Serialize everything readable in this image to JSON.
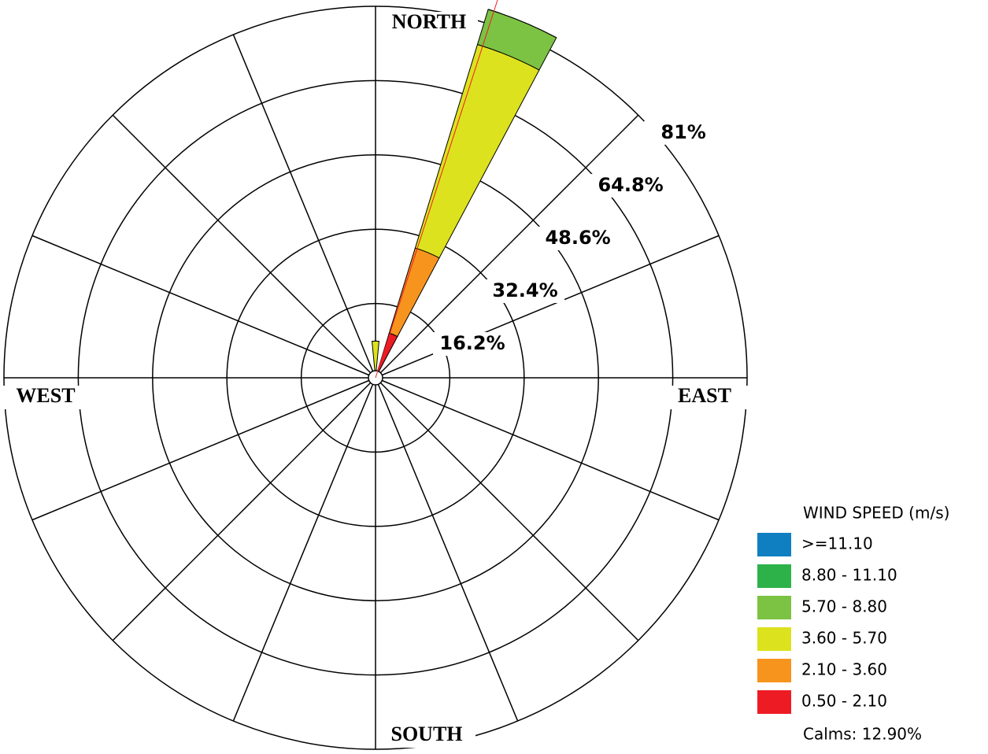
{
  "chart_data": {
    "type": "windrose",
    "categories": [
      "NORTH",
      null,
      null,
      null,
      "EAST",
      null,
      null,
      null,
      "SOUTH",
      null,
      null,
      null,
      "WEST",
      null,
      null,
      null
    ],
    "legend_title": "WIND SPEED (m/s)",
    "series": [
      {
        "name": "0.50 - 2.10",
        "color": "#ed1c24",
        "values": [
          0,
          10.2,
          0,
          0,
          0,
          0,
          0,
          0,
          0,
          0,
          0,
          0,
          0,
          0,
          0,
          0
        ]
      },
      {
        "name": "2.10 - 3.60",
        "color": "#f7941d",
        "values": [
          0,
          19.4,
          0,
          0,
          0,
          0,
          0,
          0,
          0,
          0,
          0,
          0,
          0,
          0,
          0,
          0
        ]
      },
      {
        "name": "3.60 - 5.70",
        "color": "#dde21e",
        "values": [
          8,
          46.4,
          0,
          0,
          0,
          0,
          0,
          0,
          0,
          0,
          0,
          0,
          0,
          0,
          0,
          0
        ]
      },
      {
        "name": "5.70 - 8.80",
        "color": "#7cc243",
        "values": [
          0,
          8,
          0,
          0,
          0,
          0,
          0,
          0,
          0,
          0,
          0,
          0,
          0,
          0,
          0,
          0
        ]
      },
      {
        "name": "8.80 - 11.10",
        "color": "#2db24a",
        "values": [
          0,
          0,
          0,
          0,
          0,
          0,
          0,
          0,
          0,
          0,
          0,
          0,
          0,
          0,
          0,
          0
        ]
      },
      {
        "name": ">=11.10",
        "color": "#0f7fc1",
        "values": [
          0,
          0,
          0,
          0,
          0,
          0,
          0,
          0,
          0,
          0,
          0,
          0,
          0,
          0,
          0,
          0
        ]
      }
    ],
    "rlim": [
      0,
      81
    ],
    "rticks": [
      {
        "value": 16.2,
        "label": "16.2%"
      },
      {
        "value": 32.4,
        "label": "32.4%"
      },
      {
        "value": 48.6,
        "label": "48.6%"
      },
      {
        "value": 64.8,
        "label": "64.8%"
      },
      {
        "value": 81,
        "label": "81%"
      }
    ],
    "calms": "Calms: 12.90%"
  }
}
